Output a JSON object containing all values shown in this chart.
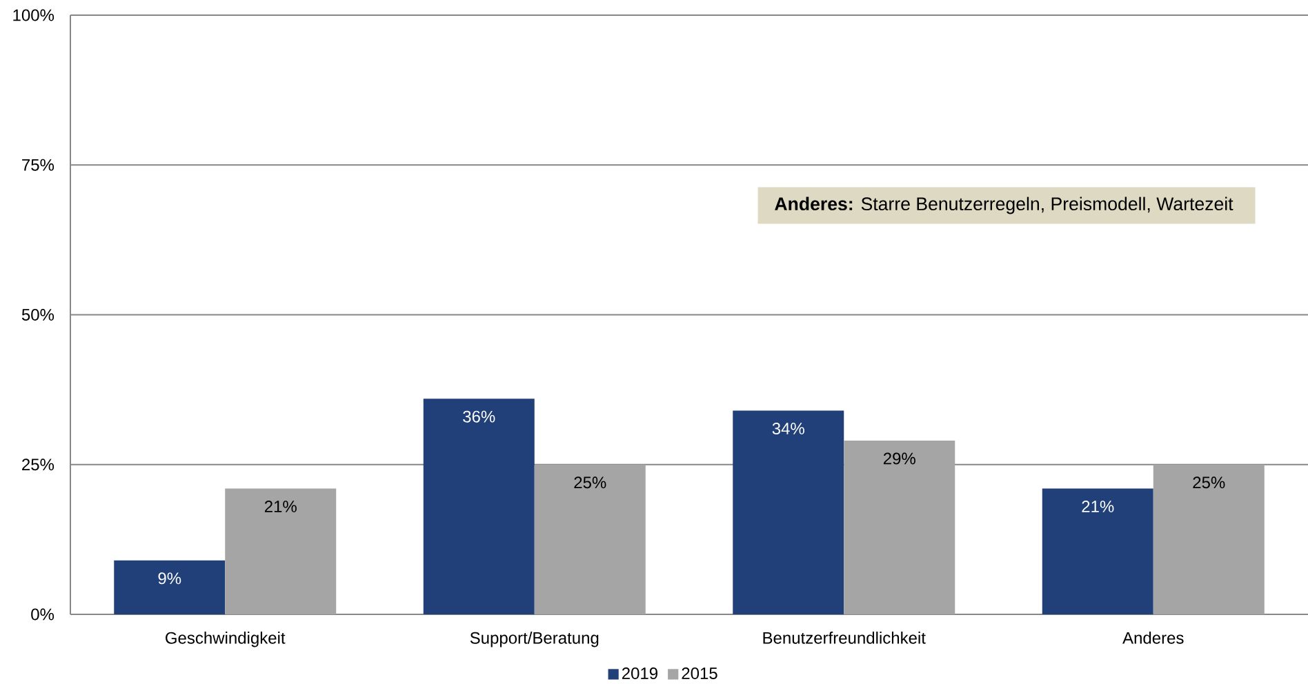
{
  "chart_data": {
    "type": "bar",
    "categories": [
      "Geschwindigkeit",
      "Support/Beratung",
      "Benutzerfreundlichkeit",
      "Anderes"
    ],
    "series": [
      {
        "name": "2019",
        "color": "#21407a",
        "values": [
          9,
          36,
          34,
          21
        ],
        "value_labels": [
          "9%",
          "36%",
          "34%",
          "21%"
        ]
      },
      {
        "name": "2015",
        "color": "#a5a5a5",
        "values": [
          21,
          25,
          29,
          25
        ],
        "value_labels": [
          "21%",
          "25%",
          "29%",
          "25%"
        ]
      }
    ],
    "ylim": [
      0,
      100
    ],
    "yticks": [
      {
        "value": 0,
        "label": "0%"
      },
      {
        "value": 25,
        "label": "25%"
      },
      {
        "value": 50,
        "label": "50%"
      },
      {
        "value": 75,
        "label": "75%"
      },
      {
        "value": 100,
        "label": "100%"
      }
    ],
    "grid": "y",
    "legend": "bottom",
    "annotations": [
      "**Anderes:** Starre Benutzerregeln, Preismodell, Wartezeit"
    ]
  }
}
